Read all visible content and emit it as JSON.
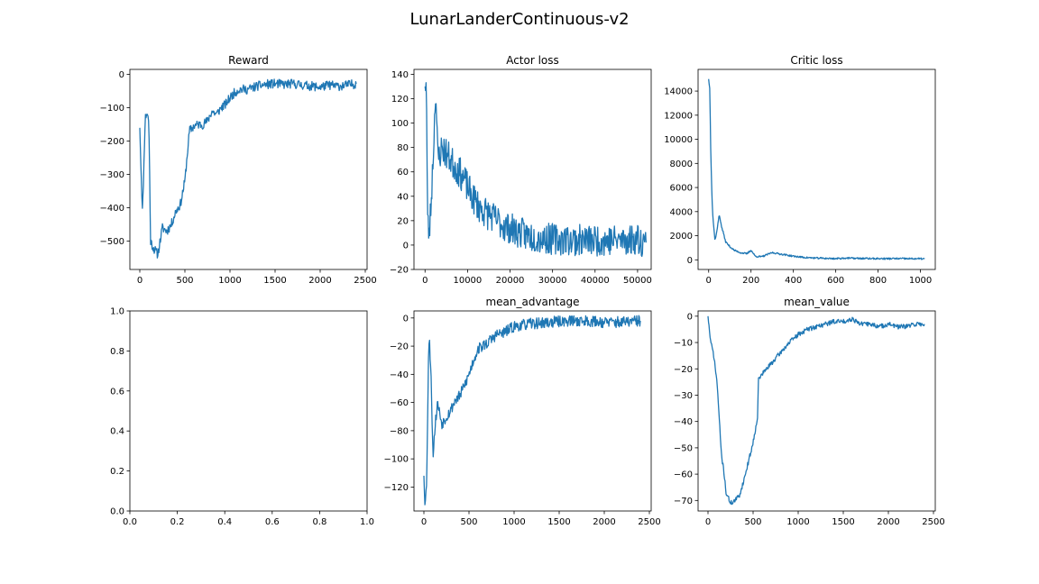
{
  "suptitle": "LunarLanderContinuous-v2",
  "line_color": "#1f77b4",
  "chart_data": [
    {
      "type": "line",
      "title": "Reward",
      "xlim": [
        -110,
        2520
      ],
      "ylim": [
        -585,
        15
      ],
      "xticks": [
        0,
        500,
        1000,
        1500,
        2000,
        2500
      ],
      "yticks": [
        0,
        -100,
        -200,
        -300,
        -400,
        -500
      ],
      "x": [
        0,
        30,
        60,
        80,
        100,
        120,
        150,
        200,
        250,
        300,
        350,
        400,
        450,
        500,
        550,
        600,
        650,
        700,
        750,
        800,
        850,
        900,
        950,
        1000,
        1050,
        1100,
        1200,
        1300,
        1400,
        1500,
        1600,
        1700,
        1800,
        1900,
        2000,
        2100,
        2200,
        2300,
        2400
      ],
      "y": [
        -160,
        -420,
        -130,
        -115,
        -140,
        -500,
        -520,
        -540,
        -460,
        -470,
        -450,
        -410,
        -390,
        -320,
        -170,
        -155,
        -150,
        -150,
        -140,
        -110,
        -120,
        -100,
        -90,
        -70,
        -55,
        -45,
        -45,
        -35,
        -30,
        -28,
        -30,
        -28,
        -32,
        -35,
        -38,
        -32,
        -35,
        -32,
        -28
      ],
      "noise": 14,
      "seed": 11
    },
    {
      "type": "line",
      "title": "Actor loss",
      "xlim": [
        -2600,
        53200
      ],
      "ylim": [
        -20,
        144
      ],
      "xticks": [
        0,
        10000,
        20000,
        30000,
        40000,
        50000
      ],
      "yticks": [
        -20,
        0,
        20,
        40,
        60,
        80,
        100,
        120,
        140
      ],
      "x": [
        0,
        300,
        600,
        1000,
        1500,
        2000,
        2500,
        3000,
        4000,
        5000,
        7000,
        9000,
        11000,
        13000,
        15000,
        17000,
        19000,
        21000,
        24000,
        27000,
        30000,
        35000,
        40000,
        45000,
        50000,
        52000
      ],
      "y": [
        130,
        138,
        20,
        8,
        40,
        80,
        130,
        70,
        80,
        75,
        65,
        55,
        40,
        30,
        25,
        20,
        15,
        12,
        8,
        6,
        5,
        4,
        4,
        4,
        5,
        2
      ],
      "noise": 13,
      "seed": 23
    },
    {
      "type": "line",
      "title": "Critic loss",
      "xlim": [
        -50,
        1070
      ],
      "ylim": [
        -800,
        15800
      ],
      "xticks": [
        0,
        200,
        400,
        600,
        800,
        1000
      ],
      "yticks": [
        0,
        2000,
        4000,
        6000,
        8000,
        10000,
        12000,
        14000
      ],
      "x": [
        0,
        5,
        10,
        15,
        20,
        30,
        40,
        50,
        60,
        70,
        80,
        100,
        120,
        150,
        180,
        200,
        220,
        250,
        300,
        350,
        400,
        450,
        500,
        600,
        650,
        700,
        800,
        900,
        1000,
        1020
      ],
      "y": [
        15000,
        14200,
        9000,
        5500,
        3500,
        1600,
        2500,
        3800,
        2800,
        2200,
        1500,
        1100,
        800,
        600,
        500,
        800,
        300,
        250,
        600,
        450,
        300,
        200,
        150,
        100,
        150,
        120,
        100,
        100,
        90,
        90
      ],
      "noise": 70,
      "seed": 37
    },
    {
      "type": "line",
      "title": "",
      "xlim": [
        0,
        1
      ],
      "ylim": [
        0,
        1
      ],
      "xticks": [
        "0.0",
        "0.2",
        "0.4",
        "0.6",
        "0.8",
        "1.0"
      ],
      "yticks": [
        "0.0",
        "0.2",
        "0.4",
        "0.6",
        "0.8",
        "1.0"
      ],
      "x": [],
      "y": []
    },
    {
      "type": "line",
      "title": "mean_advantage",
      "xlim": [
        -110,
        2520
      ],
      "ylim": [
        -137,
        5
      ],
      "xticks": [
        0,
        500,
        1000,
        1500,
        2000,
        2500
      ],
      "yticks": [
        0,
        -20,
        -40,
        -60,
        -80,
        -100,
        -120
      ],
      "x": [
        0,
        10,
        30,
        50,
        60,
        80,
        100,
        120,
        150,
        200,
        250,
        300,
        350,
        400,
        450,
        500,
        550,
        600,
        700,
        800,
        900,
        1000,
        1100,
        1200,
        1400,
        1600,
        1800,
        2000,
        2200,
        2400
      ],
      "y": [
        -112,
        -130,
        -120,
        -30,
        -15,
        -40,
        -98,
        -80,
        -60,
        -75,
        -70,
        -65,
        -58,
        -55,
        -48,
        -40,
        -30,
        -22,
        -18,
        -12,
        -10,
        -6,
        -5,
        -4,
        -3,
        -2,
        -2,
        -3,
        -3,
        -2
      ],
      "noise": 4,
      "seed": 53
    },
    {
      "type": "line",
      "title": "mean_value",
      "xlim": [
        -110,
        2520
      ],
      "ylim": [
        -74,
        2
      ],
      "xticks": [
        0,
        500,
        1000,
        1500,
        2000,
        2500
      ],
      "yticks": [
        0,
        -10,
        -20,
        -30,
        -40,
        -50,
        -60,
        -70
      ],
      "x": [
        0,
        30,
        60,
        100,
        150,
        180,
        200,
        250,
        300,
        350,
        400,
        450,
        500,
        550,
        560,
        600,
        700,
        800,
        900,
        1000,
        1100,
        1200,
        1300,
        1400,
        1500,
        1600,
        1700,
        1800,
        1900,
        2000,
        2100,
        2200,
        2300,
        2400
      ],
      "y": [
        0,
        -10,
        -14,
        -25,
        -53,
        -60,
        -67,
        -71,
        -70,
        -68,
        -62,
        -55,
        -48,
        -38,
        -24,
        -22,
        -18,
        -14,
        -10,
        -7,
        -5,
        -4,
        -3,
        -2,
        -2,
        -1,
        -3,
        -3,
        -4,
        -3,
        -4,
        -4,
        -3,
        -3
      ],
      "noise": 0.9,
      "seed": 71
    }
  ]
}
